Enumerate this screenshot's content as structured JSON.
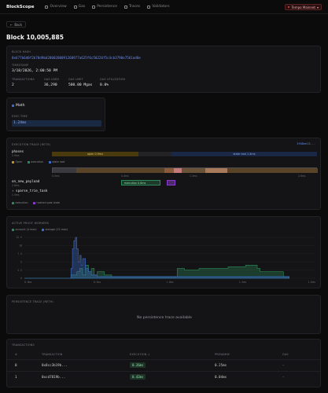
{
  "app": {
    "brand": "BlockScope",
    "nav": [
      {
        "label": "Overview",
        "icon": "overview-icon"
      },
      {
        "label": "Gas",
        "icon": "gas-icon"
      },
      {
        "label": "Persistence",
        "icon": "persistence-icon"
      },
      {
        "label": "Traces",
        "icon": "traces-icon"
      },
      {
        "label": "Validators",
        "icon": "validators-icon"
      }
    ],
    "network": "Tempo Mainnet",
    "back_label": "Back"
  },
  "page": {
    "title": "Block 10,005,885"
  },
  "block": {
    "hash_label": "BLOCK HASH",
    "hash": "0x677b6d0f2b78d9bd2800200091260977a625f6c50226f5c4cb3790e7561ad0e",
    "timestamp_label": "TIMESTAMP",
    "timestamp": "3/18/2026, 2:00:50 PM",
    "stats": [
      {
        "label": "TRANSACTIONS",
        "value": "2"
      },
      {
        "label": "GAS USED",
        "value": "36,290"
      },
      {
        "label": "GAS LIMIT",
        "value": "500.00 Mgas"
      },
      {
        "label": "GAS UTILIZATION",
        "value": "0.0%"
      }
    ]
  },
  "math": {
    "title": "Math",
    "exec_label": "EXEC TIME",
    "exec_value": "1.24ms"
  },
  "exec_trace": {
    "title": "EXECUTION TRACE (RETH)",
    "trace_id": "3f08ee13...",
    "phases_label": "phases",
    "phases_duration": "2.9ms",
    "phase_bar": [
      {
        "name": "open 0.9ms",
        "color": "#7a5e14"
      },
      {
        "name": "",
        "color": "#2a2a2e"
      },
      {
        "name": "state root 1.4ms",
        "color": "#1f2f52"
      }
    ],
    "legend_top": [
      {
        "label": "Open",
        "color": "#c4951c"
      },
      {
        "label": "execution",
        "color": "#2c8a5a"
      },
      {
        "label": "state root",
        "color": "#3a6ccf"
      }
    ],
    "ticks": [
      "0.0ms",
      "0.4ms",
      "1.3ms",
      "2.6ms"
    ],
    "on_new_payload_label": "on_new_payload",
    "on_new_payload_duration": "2.8ms",
    "sparse_label": "sparse_trie_task",
    "sparse_duration": "1.4ms",
    "sparse_block_label": "execution 0.6ms",
    "legend_bottom": [
      {
        "label": "execution",
        "color": "#2c8a5a"
      },
      {
        "label": "hashed post state",
        "color": "#8a3ad0"
      }
    ]
  },
  "proof_workers": {
    "title": "ACTIVE PROOF WORKERS",
    "legend": [
      {
        "label": "account (4 max)",
        "color": "#2c8a5a"
      },
      {
        "label": "storage (15 max)",
        "color": "#3a6ccf"
      }
    ],
    "chart_data": {
      "type": "area",
      "title": "ACTIVE PROOF WORKERS",
      "xlabel": "",
      "ylabel": "",
      "xlim": [
        0,
        2.0
      ],
      "ylim": [
        0,
        12.5
      ],
      "x_ticks": [
        "0.0ms",
        "0.5ms",
        "1.0ms",
        "1.5ms",
        "2.0ms"
      ],
      "y_ticks": [
        "0",
        "2.5",
        "5",
        "7.5",
        "10",
        "12.5"
      ],
      "grid": true,
      "series": [
        {
          "name": "account (4 max)",
          "color": "#2c8a5a",
          "x": [
            0.0,
            0.3,
            0.32,
            0.36,
            0.38,
            0.4,
            0.42,
            0.44,
            0.46,
            0.48,
            0.5,
            0.55,
            0.6,
            0.7,
            0.8,
            0.9,
            1.0,
            1.05,
            1.1,
            1.2,
            1.3,
            1.35,
            1.4,
            1.45,
            1.52,
            1.6,
            1.62,
            1.7,
            1.78,
            1.82
          ],
          "y": [
            0,
            0,
            1.0,
            2.0,
            3.0,
            1.0,
            4.0,
            2.0,
            3.0,
            1.0,
            2.0,
            1.0,
            0.5,
            0.5,
            0.5,
            0.5,
            0.5,
            3.0,
            2.5,
            3.0,
            3.0,
            3.0,
            3.5,
            3.5,
            4.0,
            3.0,
            2.0,
            2.0,
            0.5,
            0
          ]
        },
        {
          "name": "storage (15 max)",
          "color": "#3a6ccf",
          "x": [
            0.0,
            0.3,
            0.32,
            0.33,
            0.34,
            0.35,
            0.36,
            0.37,
            0.38,
            0.39,
            0.4,
            0.42,
            0.44,
            0.46,
            0.48,
            0.5,
            0.55,
            0.6,
            0.7,
            0.8,
            1.82
          ],
          "y": [
            0,
            0,
            3.0,
            9.0,
            11.5,
            12.5,
            9.0,
            5.0,
            7.0,
            4.0,
            6.0,
            3.0,
            2.0,
            1.0,
            1.0,
            0.5,
            0.5,
            0.5,
            0.5,
            0.5,
            0
          ]
        }
      ]
    }
  },
  "persistence": {
    "title": "PERSISTENCE TRACE (RETH)",
    "empty": "No persistence trace available"
  },
  "transactions": {
    "title": "TRANSACTIONS",
    "columns": [
      "#",
      "TRANSACTION",
      "EXECUTION ↓",
      "PREWARM",
      "GAS"
    ],
    "rows": [
      {
        "index": "0",
        "tx": "0x8cc3b19b...",
        "execution": "0.26ms",
        "prewarm": "0.25ms",
        "gas": "—"
      },
      {
        "index": "1",
        "tx": "0xcd7819b...",
        "execution": "0.42ms",
        "prewarm": "0.04ms",
        "gas": "—"
      }
    ]
  }
}
